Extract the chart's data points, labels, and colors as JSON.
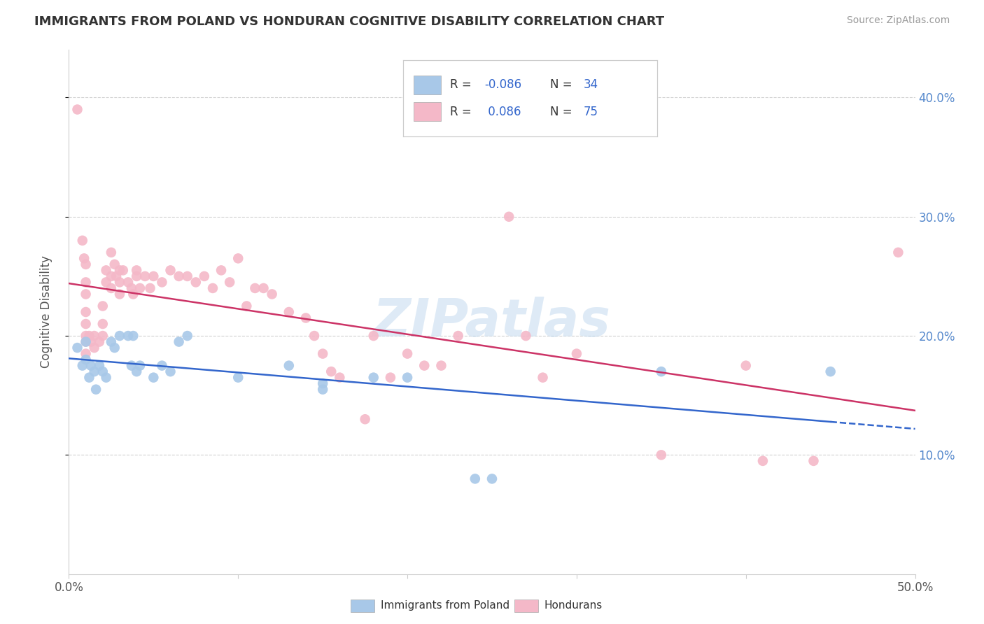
{
  "title": "IMMIGRANTS FROM POLAND VS HONDURAN COGNITIVE DISABILITY CORRELATION CHART",
  "source": "Source: ZipAtlas.com",
  "ylabel": "Cognitive Disability",
  "xlim": [
    0.0,
    0.5
  ],
  "ylim": [
    0.0,
    0.44
  ],
  "yticks": [
    0.1,
    0.2,
    0.3,
    0.4
  ],
  "yticklabels_right": [
    "10.0%",
    "20.0%",
    "30.0%",
    "40.0%"
  ],
  "legend_r_blue": "-0.086",
  "legend_n_blue": "34",
  "legend_r_pink": "0.086",
  "legend_n_pink": "75",
  "watermark": "ZIPatlas",
  "blue_scatter": [
    [
      0.005,
      0.19
    ],
    [
      0.008,
      0.175
    ],
    [
      0.01,
      0.195
    ],
    [
      0.01,
      0.18
    ],
    [
      0.012,
      0.165
    ],
    [
      0.013,
      0.175
    ],
    [
      0.015,
      0.17
    ],
    [
      0.016,
      0.155
    ],
    [
      0.018,
      0.175
    ],
    [
      0.02,
      0.17
    ],
    [
      0.022,
      0.165
    ],
    [
      0.025,
      0.195
    ],
    [
      0.027,
      0.19
    ],
    [
      0.03,
      0.2
    ],
    [
      0.035,
      0.2
    ],
    [
      0.037,
      0.175
    ],
    [
      0.038,
      0.2
    ],
    [
      0.04,
      0.17
    ],
    [
      0.042,
      0.175
    ],
    [
      0.05,
      0.165
    ],
    [
      0.055,
      0.175
    ],
    [
      0.06,
      0.17
    ],
    [
      0.065,
      0.195
    ],
    [
      0.07,
      0.2
    ],
    [
      0.1,
      0.165
    ],
    [
      0.13,
      0.175
    ],
    [
      0.15,
      0.16
    ],
    [
      0.15,
      0.155
    ],
    [
      0.18,
      0.165
    ],
    [
      0.2,
      0.165
    ],
    [
      0.24,
      0.08
    ],
    [
      0.25,
      0.08
    ],
    [
      0.35,
      0.17
    ],
    [
      0.45,
      0.17
    ]
  ],
  "pink_scatter": [
    [
      0.005,
      0.39
    ],
    [
      0.008,
      0.28
    ],
    [
      0.009,
      0.265
    ],
    [
      0.01,
      0.26
    ],
    [
      0.01,
      0.245
    ],
    [
      0.01,
      0.235
    ],
    [
      0.01,
      0.22
    ],
    [
      0.01,
      0.21
    ],
    [
      0.01,
      0.2
    ],
    [
      0.01,
      0.195
    ],
    [
      0.01,
      0.185
    ],
    [
      0.012,
      0.2
    ],
    [
      0.013,
      0.195
    ],
    [
      0.015,
      0.19
    ],
    [
      0.015,
      0.2
    ],
    [
      0.018,
      0.195
    ],
    [
      0.02,
      0.21
    ],
    [
      0.02,
      0.2
    ],
    [
      0.02,
      0.225
    ],
    [
      0.022,
      0.255
    ],
    [
      0.022,
      0.245
    ],
    [
      0.025,
      0.27
    ],
    [
      0.025,
      0.25
    ],
    [
      0.025,
      0.24
    ],
    [
      0.027,
      0.26
    ],
    [
      0.028,
      0.25
    ],
    [
      0.03,
      0.255
    ],
    [
      0.03,
      0.245
    ],
    [
      0.03,
      0.235
    ],
    [
      0.032,
      0.255
    ],
    [
      0.035,
      0.245
    ],
    [
      0.037,
      0.24
    ],
    [
      0.038,
      0.235
    ],
    [
      0.04,
      0.255
    ],
    [
      0.04,
      0.25
    ],
    [
      0.042,
      0.24
    ],
    [
      0.045,
      0.25
    ],
    [
      0.048,
      0.24
    ],
    [
      0.05,
      0.25
    ],
    [
      0.055,
      0.245
    ],
    [
      0.06,
      0.255
    ],
    [
      0.065,
      0.25
    ],
    [
      0.07,
      0.25
    ],
    [
      0.075,
      0.245
    ],
    [
      0.08,
      0.25
    ],
    [
      0.085,
      0.24
    ],
    [
      0.09,
      0.255
    ],
    [
      0.095,
      0.245
    ],
    [
      0.1,
      0.265
    ],
    [
      0.105,
      0.225
    ],
    [
      0.11,
      0.24
    ],
    [
      0.115,
      0.24
    ],
    [
      0.12,
      0.235
    ],
    [
      0.13,
      0.22
    ],
    [
      0.14,
      0.215
    ],
    [
      0.145,
      0.2
    ],
    [
      0.15,
      0.185
    ],
    [
      0.155,
      0.17
    ],
    [
      0.16,
      0.165
    ],
    [
      0.175,
      0.13
    ],
    [
      0.18,
      0.2
    ],
    [
      0.19,
      0.165
    ],
    [
      0.2,
      0.185
    ],
    [
      0.21,
      0.175
    ],
    [
      0.22,
      0.175
    ],
    [
      0.23,
      0.2
    ],
    [
      0.26,
      0.3
    ],
    [
      0.27,
      0.2
    ],
    [
      0.28,
      0.165
    ],
    [
      0.3,
      0.185
    ],
    [
      0.35,
      0.1
    ],
    [
      0.4,
      0.175
    ],
    [
      0.41,
      0.095
    ],
    [
      0.44,
      0.095
    ],
    [
      0.49,
      0.27
    ]
  ],
  "blue_color": "#a8c8e8",
  "pink_color": "#f4b8c8",
  "blue_line_color": "#3366cc",
  "pink_line_color": "#cc3366",
  "background_color": "#ffffff",
  "grid_color": "#cccccc"
}
